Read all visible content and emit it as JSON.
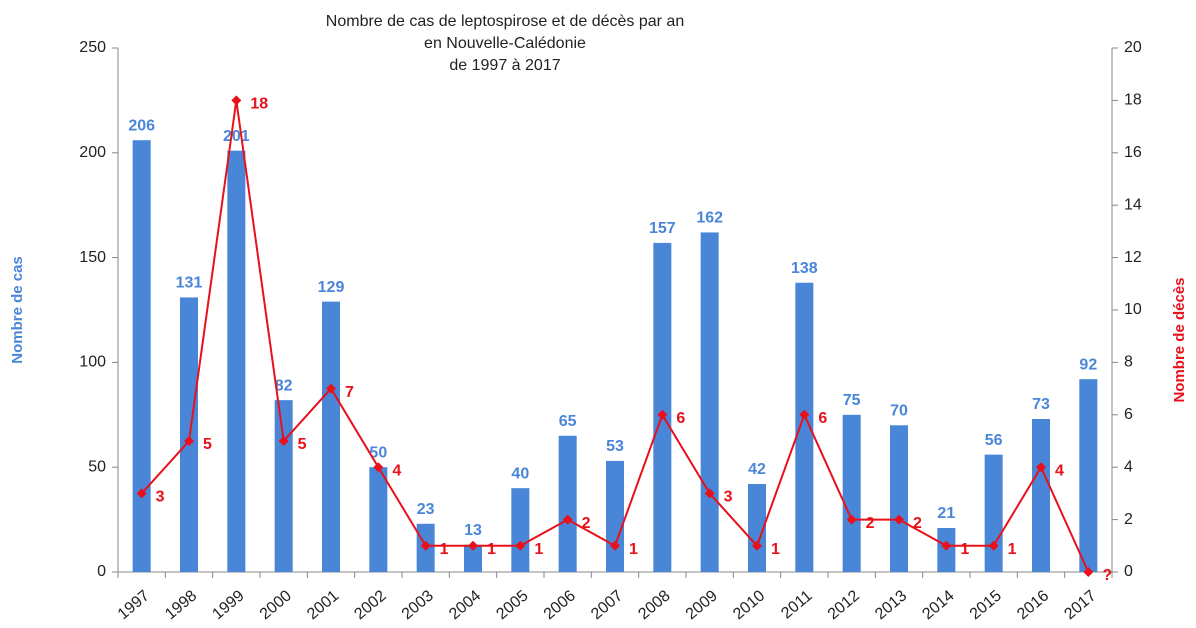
{
  "chart_data": {
    "type": "bar_line",
    "title": [
      "Nombre de cas de leptospirose et de décès par an",
      "en Nouvelle-Calédonie",
      "de 1997 à 2017"
    ],
    "ylabel": "Nombre de cas",
    "y2label": "Nombre de décès",
    "categories": [
      "1997",
      "1998",
      "1999",
      "2000",
      "2001",
      "2002",
      "2003",
      "2004",
      "2005",
      "2006",
      "2007",
      "2008",
      "2009",
      "2010",
      "2011",
      "2012",
      "2013",
      "2014",
      "2015",
      "2016",
      "2017"
    ],
    "series": [
      {
        "name": "Nombre de cas",
        "type": "bar",
        "color": "#4a86d8",
        "values": [
          206,
          131,
          201,
          82,
          129,
          50,
          23,
          13,
          40,
          65,
          53,
          157,
          162,
          42,
          138,
          75,
          70,
          21,
          56,
          73,
          92
        ]
      },
      {
        "name": "Nombre de décès",
        "type": "line",
        "axis": "y2",
        "color": "#e8111b",
        "values": [
          3,
          5,
          18,
          5,
          7,
          4,
          1,
          1,
          1,
          2,
          1,
          6,
          3,
          1,
          6,
          2,
          2,
          1,
          1,
          4,
          0
        ],
        "value_labels": [
          "3",
          "5",
          "18",
          "5",
          "7",
          "4",
          "1",
          "1",
          "1",
          "2",
          "1",
          "6",
          "3",
          "1",
          "6",
          "2",
          "2",
          "1",
          "1",
          "4",
          "?"
        ]
      }
    ],
    "ylim": [
      0,
      250
    ],
    "yticks": [
      0,
      50,
      100,
      150,
      200,
      250
    ],
    "y2lim": [
      0,
      20
    ],
    "y2ticks": [
      0,
      2,
      4,
      6,
      8,
      10,
      12,
      14,
      16,
      18,
      20
    ]
  }
}
